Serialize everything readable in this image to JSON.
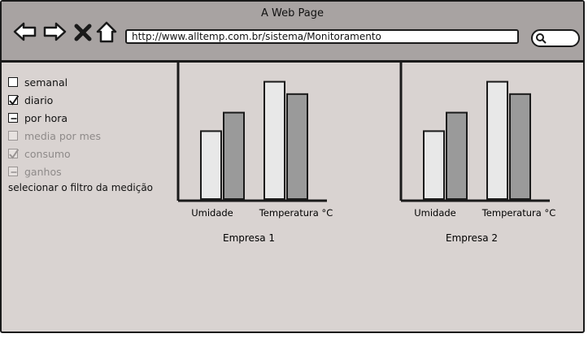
{
  "window": {
    "title": "A Web Page"
  },
  "browser": {
    "url": "http://www.alltemp.com.br/sistema/Monitoramento",
    "icons": [
      "back-arrow-icon",
      "forward-arrow-icon",
      "close-icon",
      "home-icon",
      "search-icon"
    ]
  },
  "sidebar": {
    "options": [
      {
        "label": "semanal",
        "state": "unchecked",
        "enabled": true
      },
      {
        "label": "diario",
        "state": "checked",
        "enabled": true
      },
      {
        "label": "por hora",
        "state": "indeterminate",
        "enabled": true
      },
      {
        "label": "media por mes",
        "state": "unchecked",
        "enabled": false
      },
      {
        "label": "consumo",
        "state": "checked",
        "enabled": false
      },
      {
        "label": "ganhos",
        "state": "indeterminate",
        "enabled": false
      }
    ],
    "hint": "selecionar o filtro da medição"
  },
  "chart_data": [
    {
      "type": "bar",
      "title": "Empresa 1",
      "categories": [
        "Umidade",
        "Temperatura °C"
      ],
      "series": [
        {
          "values": [
            55,
            95
          ],
          "color": "#e8e8e8"
        },
        {
          "values": [
            70,
            85
          ],
          "color": "#9a9a9a"
        }
      ],
      "ylim": [
        0,
        100
      ]
    },
    {
      "type": "bar",
      "title": "Empresa 2",
      "categories": [
        "Umidade",
        "Temperatura °C"
      ],
      "series": [
        {
          "values": [
            55,
            95
          ],
          "color": "#e8e8e8"
        },
        {
          "values": [
            70,
            85
          ],
          "color": "#9a9a9a"
        }
      ],
      "ylim": [
        0,
        100
      ]
    }
  ]
}
